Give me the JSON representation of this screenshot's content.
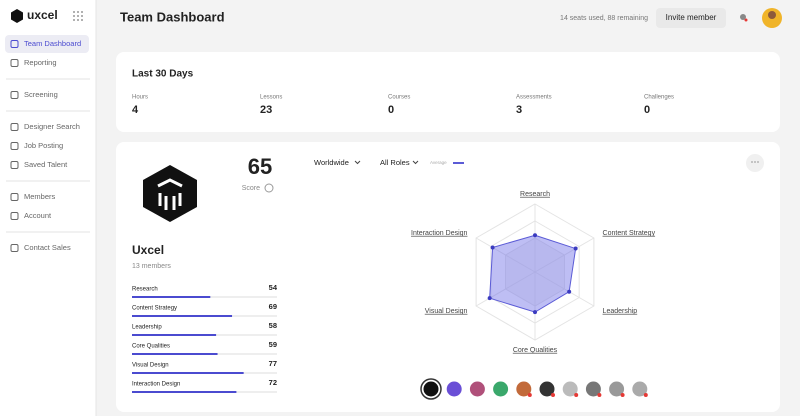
{
  "sidebar": {
    "brand": "uxcel",
    "groups": [
      [
        "Team Dashboard",
        "Reporting"
      ],
      [
        "Screening"
      ],
      [
        "Designer Search",
        "Job Posting",
        "Saved Talent"
      ],
      [
        "Members",
        "Account"
      ],
      [
        "Contact Sales"
      ]
    ]
  },
  "header": {
    "title": "Team Dashboard",
    "seats": "14 seats used, 88 remaining",
    "invite_button": "Invite member"
  },
  "summary": {
    "title": "Last 30 Days",
    "stats": [
      {
        "label": "Hours",
        "value": 4
      },
      {
        "label": "Lessons",
        "value": 23
      },
      {
        "label": "Courses",
        "value": 0
      },
      {
        "label": "Assessments",
        "value": 3
      },
      {
        "label": "Challenges",
        "value": 0
      }
    ]
  },
  "team": {
    "score": 65,
    "score_label": "Score",
    "name": "Uxcel",
    "members": "13 members",
    "filters": [
      "Worldwide",
      "All Roles"
    ],
    "legend": "Average",
    "skills": [
      {
        "name": "Research",
        "value": 54
      },
      {
        "name": "Content Strategy",
        "value": 69
      },
      {
        "name": "Leadership",
        "value": 58
      },
      {
        "name": "Core Qualities",
        "value": 59
      },
      {
        "name": "Visual Design",
        "value": 77
      },
      {
        "name": "Interaction Design",
        "value": 72
      }
    ]
  }
}
